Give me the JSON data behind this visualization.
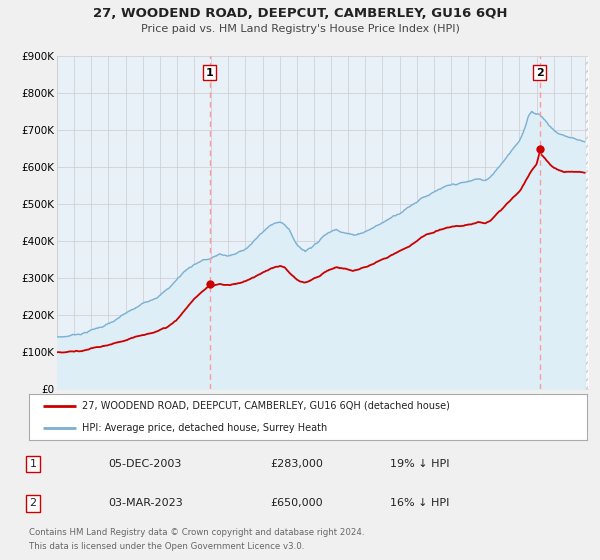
{
  "title": "27, WOODEND ROAD, DEEPCUT, CAMBERLEY, GU16 6QH",
  "subtitle": "Price paid vs. HM Land Registry's House Price Index (HPI)",
  "legend_label_red": "27, WOODEND ROAD, DEEPCUT, CAMBERLEY, GU16 6QH (detached house)",
  "legend_label_blue": "HPI: Average price, detached house, Surrey Heath",
  "annotation1": {
    "label": "1",
    "date": "05-DEC-2003",
    "price": "£283,000",
    "pct": "19% ↓ HPI",
    "x_year": 2003.92,
    "y_val": 283000
  },
  "annotation2": {
    "label": "2",
    "date": "03-MAR-2023",
    "price": "£650,000",
    "pct": "16% ↓ HPI",
    "x_year": 2023.17,
    "y_val": 650000
  },
  "footer1": "Contains HM Land Registry data © Crown copyright and database right 2024.",
  "footer2": "This data is licensed under the Open Government Licence v3.0.",
  "ylim": [
    0,
    900000
  ],
  "xlim_start": 1995,
  "xlim_end": 2026,
  "red_color": "#cc0000",
  "blue_color": "#7ab0d4",
  "blue_fill_color": "#ddeef7",
  "vline_color": "#ff9999",
  "grid_color": "#cccccc",
  "background_color": "#f0f0f0",
  "plot_bg_color": "#e8f0f8",
  "white": "#ffffff"
}
